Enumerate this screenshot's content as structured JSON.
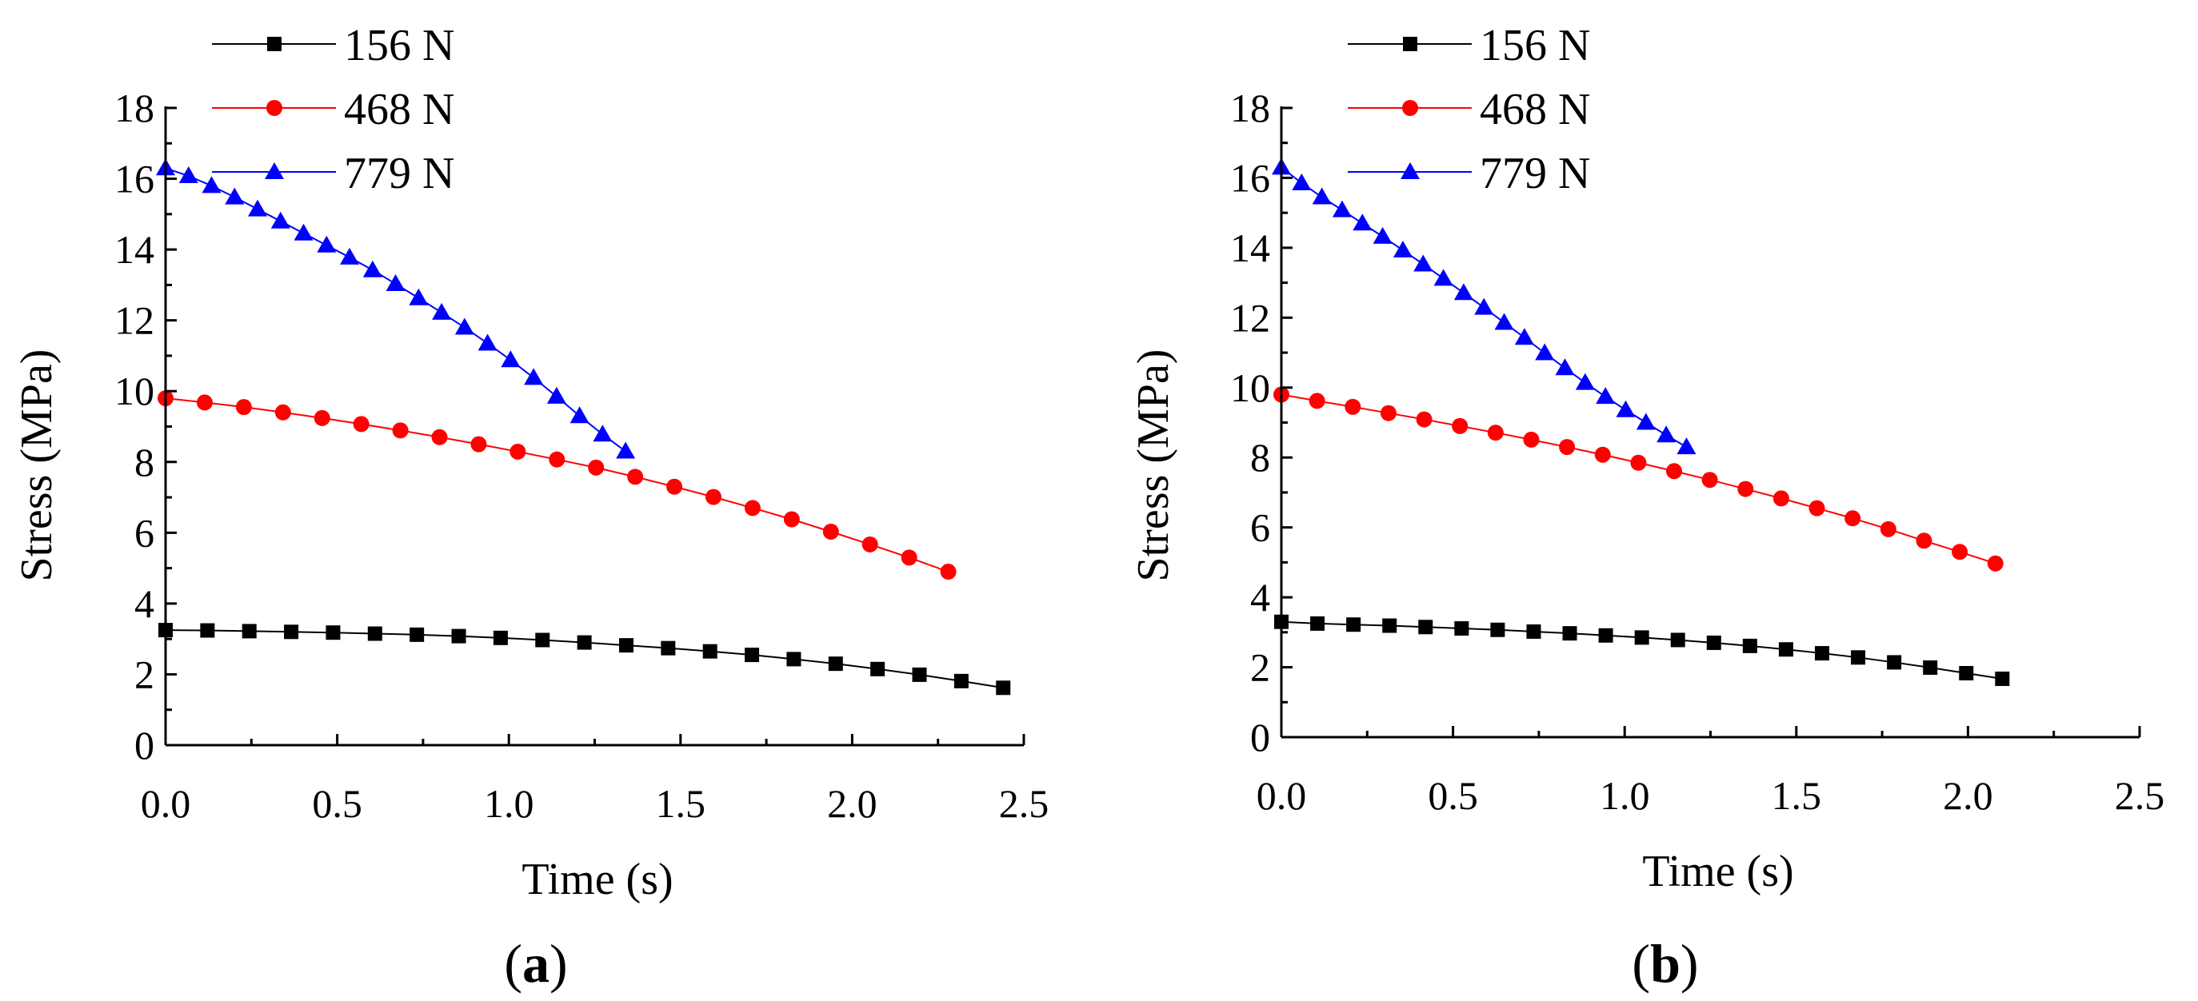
{
  "figure": {
    "panel_labels": [
      {
        "open": "(",
        "letter": "a",
        "close": ")"
      },
      {
        "open": "(",
        "letter": "b",
        "close": ")"
      }
    ]
  },
  "chart_data": [
    {
      "type": "line",
      "panel": "a",
      "xlabel": "Time (s)",
      "ylabel": "Stress (MPa)",
      "xlim": [
        0,
        2.5
      ],
      "ylim": [
        0,
        18
      ],
      "x_ticks": [
        0.0,
        0.5,
        1.0,
        1.5,
        2.0,
        2.5
      ],
      "x_tick_labels": [
        "0.0",
        "0.5",
        "1.0",
        "1.5",
        "2.0",
        "2.5"
      ],
      "y_ticks": [
        0,
        2,
        4,
        6,
        8,
        10,
        12,
        14,
        16,
        18
      ],
      "y_tick_labels": [
        "0",
        "2",
        "4",
        "6",
        "8",
        "10",
        "12",
        "14",
        "16",
        "18"
      ],
      "legend_position": "top-left",
      "series": [
        {
          "name": "156 N",
          "color": "#000000",
          "marker": "square",
          "x": [
            0,
            0.122,
            0.244,
            0.366,
            0.488,
            0.61,
            0.732,
            0.854,
            0.976,
            1.098,
            1.22,
            1.342,
            1.464,
            1.586,
            1.708,
            1.83,
            1.952,
            2.074,
            2.196,
            2.318,
            2.44
          ],
          "y": [
            3.25,
            3.24,
            3.22,
            3.2,
            3.18,
            3.15,
            3.12,
            3.08,
            3.03,
            2.97,
            2.9,
            2.82,
            2.74,
            2.65,
            2.55,
            2.43,
            2.3,
            2.15,
            1.99,
            1.81,
            1.62
          ]
        },
        {
          "name": "468 N",
          "color": "#ff0000",
          "marker": "circle",
          "x": [
            0,
            0.114,
            0.228,
            0.342,
            0.456,
            0.57,
            0.684,
            0.798,
            0.912,
            1.026,
            1.14,
            1.254,
            1.368,
            1.482,
            1.596,
            1.71,
            1.824,
            1.938,
            2.052,
            2.166,
            2.28
          ],
          "y": [
            9.8,
            9.68,
            9.55,
            9.4,
            9.24,
            9.07,
            8.89,
            8.7,
            8.5,
            8.29,
            8.07,
            7.84,
            7.58,
            7.3,
            7.01,
            6.7,
            6.38,
            6.03,
            5.67,
            5.3,
            4.9
          ]
        },
        {
          "name": "779 N",
          "color": "#0000ff",
          "marker": "triangle",
          "x": [
            0,
            0.067,
            0.134,
            0.201,
            0.268,
            0.335,
            0.402,
            0.469,
            0.536,
            0.603,
            0.67,
            0.737,
            0.804,
            0.871,
            0.938,
            1.005,
            1.072,
            1.139,
            1.206,
            1.273,
            1.34
          ],
          "y": [
            16.3,
            16.08,
            15.8,
            15.48,
            15.14,
            14.8,
            14.46,
            14.12,
            13.78,
            13.42,
            13.03,
            12.63,
            12.22,
            11.8,
            11.35,
            10.88,
            10.38,
            9.85,
            9.3,
            8.78,
            8.3
          ]
        }
      ]
    },
    {
      "type": "line",
      "panel": "b",
      "xlabel": "Time (s)",
      "ylabel": "Stress (MPa)",
      "xlim": [
        0,
        2.5
      ],
      "ylim": [
        0,
        18
      ],
      "x_ticks": [
        0.0,
        0.5,
        1.0,
        1.5,
        2.0,
        2.5
      ],
      "x_tick_labels": [
        "0.0",
        "0.5",
        "1.0",
        "1.5",
        "2.0",
        "2.5"
      ],
      "y_ticks": [
        0,
        2,
        4,
        6,
        8,
        10,
        12,
        14,
        16,
        18
      ],
      "y_tick_labels": [
        "0",
        "2",
        "4",
        "6",
        "8",
        "10",
        "12",
        "14",
        "16",
        "18"
      ],
      "legend_position": "top-left",
      "series": [
        {
          "name": "156 N",
          "color": "#000000",
          "marker": "square",
          "x": [
            0,
            0.105,
            0.21,
            0.315,
            0.42,
            0.525,
            0.63,
            0.735,
            0.84,
            0.945,
            1.05,
            1.155,
            1.26,
            1.365,
            1.47,
            1.575,
            1.68,
            1.785,
            1.89,
            1.995,
            2.1
          ],
          "y": [
            3.3,
            3.25,
            3.22,
            3.19,
            3.15,
            3.11,
            3.07,
            3.02,
            2.97,
            2.91,
            2.85,
            2.78,
            2.7,
            2.61,
            2.51,
            2.4,
            2.28,
            2.14,
            1.99,
            1.83,
            1.67
          ]
        },
        {
          "name": "468 N",
          "color": "#ff0000",
          "marker": "circle",
          "x": [
            0,
            0.104,
            0.208,
            0.312,
            0.416,
            0.52,
            0.624,
            0.728,
            0.832,
            0.936,
            1.04,
            1.144,
            1.248,
            1.352,
            1.456,
            1.56,
            1.664,
            1.768,
            1.872,
            1.976,
            2.08
          ],
          "y": [
            9.8,
            9.62,
            9.45,
            9.27,
            9.09,
            8.9,
            8.71,
            8.51,
            8.3,
            8.08,
            7.85,
            7.61,
            7.36,
            7.1,
            6.83,
            6.55,
            6.26,
            5.95,
            5.62,
            5.3,
            4.97
          ]
        },
        {
          "name": "779 N",
          "color": "#0000ff",
          "marker": "triangle",
          "x": [
            0,
            0.059,
            0.118,
            0.177,
            0.236,
            0.295,
            0.354,
            0.413,
            0.472,
            0.531,
            0.59,
            0.649,
            0.708,
            0.767,
            0.826,
            0.885,
            0.944,
            1.003,
            1.062,
            1.121,
            1.18
          ],
          "y": [
            16.3,
            15.85,
            15.45,
            15.08,
            14.7,
            14.32,
            13.93,
            13.53,
            13.12,
            12.71,
            12.29,
            11.86,
            11.43,
            10.99,
            10.56,
            10.14,
            9.74,
            9.36,
            9.0,
            8.64,
            8.3
          ]
        }
      ]
    }
  ]
}
